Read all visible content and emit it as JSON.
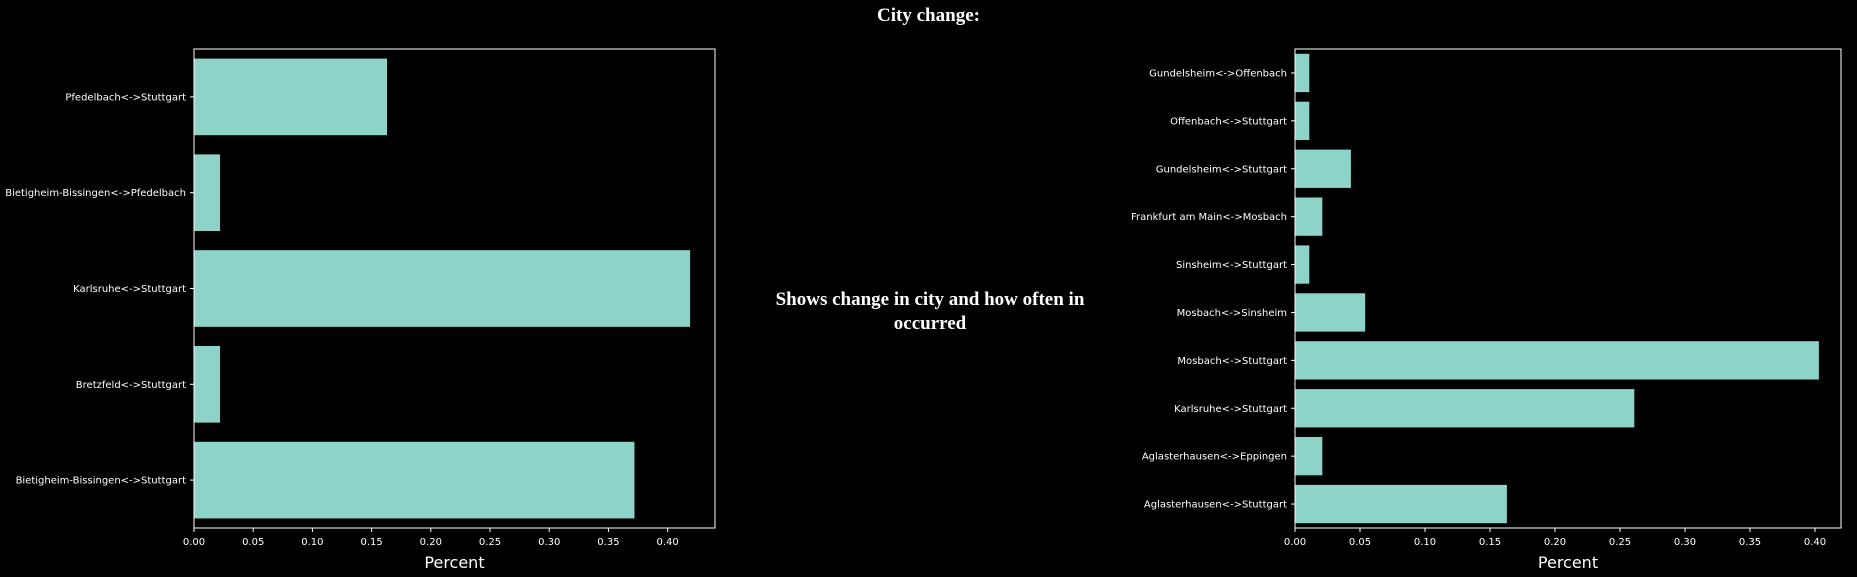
{
  "page": {
    "title": "City change:",
    "caption": "Shows change in city and how often in occurred",
    "colors": {
      "background": "#000000",
      "bar": "#8dd3c7",
      "axis": "#ffffff",
      "text": "#ffffff"
    }
  },
  "chart_data": [
    {
      "type": "bar",
      "orientation": "horizontal",
      "categories": [
        "Bietigheim-Bissingen<->Stuttgart",
        "Bretzfeld<->Stuttgart",
        "Karlsruhe<->Stuttgart",
        "Bietigheim-Bissingen<->Pfedelbach",
        "Pfedelbach<->Stuttgart"
      ],
      "values": [
        0.372,
        0.022,
        0.419,
        0.022,
        0.163
      ],
      "xlabel": "Percent",
      "ylabel": "",
      "xlim": [
        0,
        0.44
      ],
      "xticks": [
        "0.00",
        "0.05",
        "0.10",
        "0.15",
        "0.20",
        "0.25",
        "0.30",
        "0.35",
        "0.40"
      ],
      "grid": false
    },
    {
      "type": "bar",
      "orientation": "horizontal",
      "categories": [
        "Aglasterhausen<->Stuttgart",
        "Aglasterhausen<->Eppingen",
        "Karlsruhe<->Stuttgart",
        "Mosbach<->Stuttgart",
        "Mosbach<->Sinsheim",
        "Sinsheim<->Stuttgart",
        "Frankfurt am Main<->Mosbach",
        "Gundelsheim<->Stuttgart",
        "Offenbach<->Stuttgart",
        "Gundelsheim<->Offenbach"
      ],
      "values": [
        0.163,
        0.021,
        0.261,
        0.403,
        0.054,
        0.011,
        0.021,
        0.043,
        0.011,
        0.011
      ],
      "xlabel": "Percent",
      "ylabel": "",
      "xlim": [
        0,
        0.42
      ],
      "xticks": [
        "0.00",
        "0.05",
        "0.10",
        "0.15",
        "0.20",
        "0.25",
        "0.30",
        "0.35",
        "0.40"
      ],
      "grid": false
    }
  ]
}
